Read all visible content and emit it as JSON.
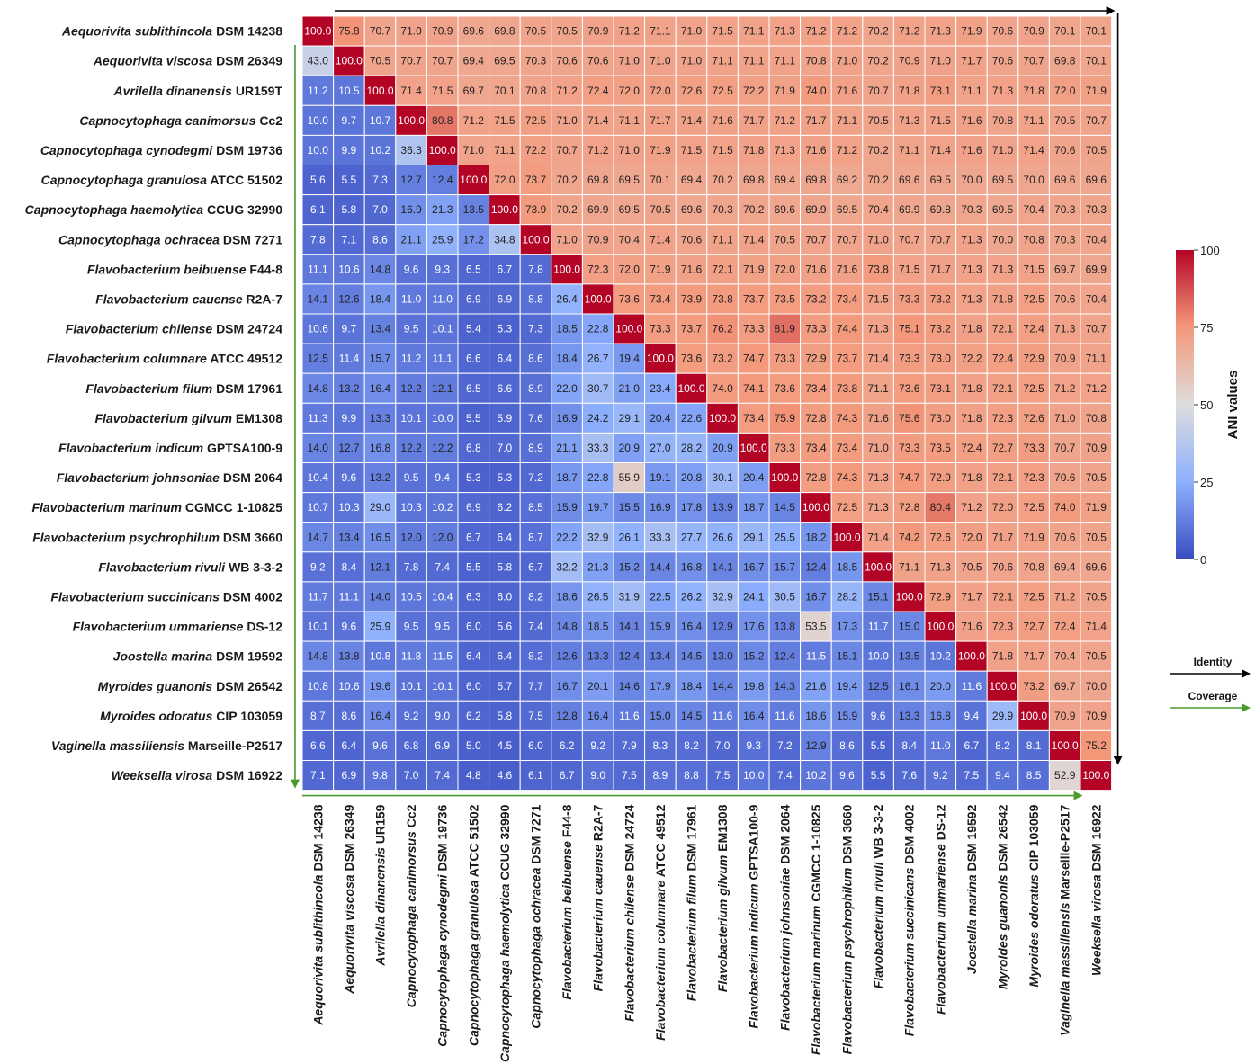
{
  "chart_data": {
    "type": "heatmap",
    "row_labels": [
      {
        "species": "Aequorivita sublithincola",
        "strain": "DSM 14238"
      },
      {
        "species": "Aequorivita viscosa",
        "strain": "DSM 26349"
      },
      {
        "species": "Avrilella dinanensis",
        "strain": "UR159T"
      },
      {
        "species": "Capnocytophaga canimorsus",
        "strain": "Cc2"
      },
      {
        "species": "Capnocytophaga cynodegmi",
        "strain": "DSM 19736"
      },
      {
        "species": "Capnocytophaga granulosa",
        "strain": "ATCC 51502"
      },
      {
        "species": "Capnocytophaga haemolytica",
        "strain": "CCUG 32990"
      },
      {
        "species": "Capnocytophaga ochracea",
        "strain": "DSM 7271"
      },
      {
        "species": "Flavobacterium beibuense",
        "strain": "F44-8"
      },
      {
        "species": "Flavobacterium cauense",
        "strain": "R2A-7"
      },
      {
        "species": "Flavobacterium chilense",
        "strain": "DSM 24724"
      },
      {
        "species": "Flavobacterium columnare",
        "strain": "ATCC 49512"
      },
      {
        "species": "Flavobacterium filum",
        "strain": "DSM 17961"
      },
      {
        "species": "Flavobacterium gilvum",
        "strain": "EM1308"
      },
      {
        "species": "Flavobacterium indicum",
        "strain": "GPTSA100-9"
      },
      {
        "species": "Flavobacterium johnsoniae",
        "strain": "DSM 2064"
      },
      {
        "species": "Flavobacterium marinum",
        "strain": "CGMCC 1-10825"
      },
      {
        "species": "Flavobacterium psychrophilum",
        "strain": "DSM 3660"
      },
      {
        "species": "Flavobacterium rivuli",
        "strain": "WB 3-3-2"
      },
      {
        "species": "Flavobacterium succinicans",
        "strain": "DSM 4002"
      },
      {
        "species": "Flavobacterium ummariense",
        "strain": "DS-12"
      },
      {
        "species": "Joostella marina",
        "strain": "DSM 19592"
      },
      {
        "species": "Myroides guanonis",
        "strain": "DSM 26542"
      },
      {
        "species": "Myroides odoratus",
        "strain": "CIP 103059"
      },
      {
        "species": "Vaginella massiliensis",
        "strain": "Marseille-P2517"
      },
      {
        "species": "Weeksella virosa",
        "strain": "DSM 16922"
      }
    ],
    "col_labels": [
      {
        "species": "Aequorivita sublithincola",
        "strain": "DSM 14238"
      },
      {
        "species": "Aequorivita viscosa",
        "strain": "DSM 26349"
      },
      {
        "species": "Avrilella dinanensis",
        "strain": "UR159"
      },
      {
        "species": "Capnocytophaga canimorsus",
        "strain": "Cc2"
      },
      {
        "species": "Capnocytophaga cynodegmi",
        "strain": "DSM 19736"
      },
      {
        "species": "Capnocytophaga granulosa",
        "strain": "ATCC 51502"
      },
      {
        "species": "Capnocytophaga haemolytica",
        "strain": "CCUG 32990"
      },
      {
        "species": "Capnocytophaga ochracea",
        "strain": "DSM 7271"
      },
      {
        "species": "Flavobacterium beibuense",
        "strain": "F44-8"
      },
      {
        "species": "Flavobacterium cauense",
        "strain": "R2A-7"
      },
      {
        "species": "Flavobacterium chilense",
        "strain": "DSM 24724"
      },
      {
        "species": "Flavobacterium columnare",
        "strain": "ATCC 49512"
      },
      {
        "species": "Flavobacterium filum",
        "strain": "DSM 17961"
      },
      {
        "species": "Flavobacterium gilvum",
        "strain": "EM1308"
      },
      {
        "species": "Flavobacterium indicum",
        "strain": "GPTSA100-9"
      },
      {
        "species": "Flavobacterium johnsoniae",
        "strain": "DSM 2064"
      },
      {
        "species": "Flavobacterium marinum",
        "strain": "CGMCC 1-10825"
      },
      {
        "species": "Flavobacterium psychrophilum",
        "strain": "DSM 3660"
      },
      {
        "species": "Flavobacterium rivuli",
        "strain": "WB 3-3-2"
      },
      {
        "species": "Flavobacterium succinicans",
        "strain": "DSM 4002"
      },
      {
        "species": "Flavobacterium ummariense",
        "strain": "DS-12"
      },
      {
        "species": "Joostella marina",
        "strain": "DSM 19592"
      },
      {
        "species": "Myroides guanonis",
        "strain": "DSM 26542"
      },
      {
        "species": "Myroides odoratus",
        "strain": "CIP 103059"
      },
      {
        "species": "Vaginella massiliensis",
        "strain": "Marseille-P2517"
      },
      {
        "species": "Weeksella virosa",
        "strain": "DSM 16922"
      }
    ],
    "values": [
      [
        "100.0",
        "75.8",
        "70.7",
        "71.0",
        "70.9",
        "69.6",
        "69.8",
        "70.5",
        "70.5",
        "70.9",
        "71.2",
        "71.1",
        "71.0",
        "71.5",
        "71.1",
        "71.3",
        "71.2",
        "71.2",
        "70.2",
        "71.2",
        "71.3",
        "71.9",
        "70.6",
        "70.9",
        "70.1",
        "70.1"
      ],
      [
        "43.0",
        "100.0",
        "70.5",
        "70.7",
        "70.7",
        "69.4",
        "69.5",
        "70.3",
        "70.6",
        "70.6",
        "71.0",
        "71.0",
        "71.0",
        "71.1",
        "71.1",
        "71.1",
        "70.8",
        "71.0",
        "70.2",
        "70.9",
        "71.0",
        "71.7",
        "70.6",
        "70.7",
        "69.8",
        "70.1"
      ],
      [
        "11.2",
        "10.5",
        "100.0",
        "71.4",
        "71.5",
        "69.7",
        "70.1",
        "70.8",
        "71.2",
        "72.4",
        "72.0",
        "72.0",
        "72.6",
        "72.5",
        "72.2",
        "71.9",
        "74.0",
        "71.6",
        "70.7",
        "71.8",
        "73.1",
        "71.1",
        "71.3",
        "71.8",
        "72.0",
        "71.9"
      ],
      [
        "10.0",
        "9.7",
        "10.7",
        "100.0",
        "80.8",
        "71.2",
        "71.5",
        "72.5",
        "71.0",
        "71.4",
        "71.1",
        "71.7",
        "71.4",
        "71.6",
        "71.7",
        "71.2",
        "71.7",
        "71.1",
        "70.5",
        "71.3",
        "71.5",
        "71.6",
        "70.8",
        "71.1",
        "70.5",
        "70.7"
      ],
      [
        "10.0",
        "9.9",
        "10.2",
        "36.3",
        "100.0",
        "71.0",
        "71.1",
        "72.2",
        "70.7",
        "71.2",
        "71.0",
        "71.9",
        "71.5",
        "71.5",
        "71.8",
        "71.3",
        "71.6",
        "71.2",
        "70.2",
        "71.1",
        "71.4",
        "71.6",
        "71.0",
        "71.4",
        "70.6",
        "70.5"
      ],
      [
        "5.6",
        "5.5",
        "7.3",
        "12.7",
        "12.4",
        "100.0",
        "72.0",
        "73.7",
        "70.2",
        "69.8",
        "69.5",
        "70.1",
        "69.4",
        "70.2",
        "69.8",
        "69.4",
        "69.8",
        "69.2",
        "70.2",
        "69.6",
        "69.5",
        "70.0",
        "69.5",
        "70.0",
        "69.6",
        "69.6"
      ],
      [
        "6.1",
        "5.8",
        "7.0",
        "16.9",
        "21.3",
        "13.5",
        "100.0",
        "73.9",
        "70.2",
        "69.9",
        "69.5",
        "70.5",
        "69.6",
        "70.3",
        "70.2",
        "69.6",
        "69.9",
        "69.5",
        "70.4",
        "69.9",
        "69.8",
        "70.3",
        "69.5",
        "70.4",
        "70.3",
        "70.3"
      ],
      [
        "7.8",
        "7.1",
        "8.6",
        "21.1",
        "25.9",
        "17.2",
        "34.8",
        "100.0",
        "71.0",
        "70.9",
        "70.4",
        "71.4",
        "70.6",
        "71.1",
        "71.4",
        "70.5",
        "70.7",
        "70.7",
        "71.0",
        "70.7",
        "70.7",
        "71.3",
        "70.0",
        "70.8",
        "70.3",
        "70.4"
      ],
      [
        "11.1",
        "10.6",
        "14.8",
        "9.6",
        "9.3",
        "6.5",
        "6.7",
        "7.8",
        "100.0",
        "72.3",
        "72.0",
        "71.9",
        "71.6",
        "72.1",
        "71.9",
        "72.0",
        "71.6",
        "71.6",
        "73.8",
        "71.5",
        "71.7",
        "71.3",
        "71.3",
        "71.5",
        "69.7",
        "69.9"
      ],
      [
        "14.1",
        "12.6",
        "18.4",
        "11.0",
        "11.0",
        "6.9",
        "6.9",
        "8.8",
        "26.4",
        "100.0",
        "73.6",
        "73.4",
        "73.9",
        "73.8",
        "73.7",
        "73.5",
        "73.2",
        "73.4",
        "71.5",
        "73.3",
        "73.2",
        "71.3",
        "71.8",
        "72.5",
        "70.6",
        "70.4"
      ],
      [
        "10.6",
        "9.7",
        "13.4",
        "9.5",
        "10.1",
        "5.4",
        "5.3",
        "7.3",
        "18.5",
        "22.8",
        "100.0",
        "73.3",
        "73.7",
        "76.2",
        "73.3",
        "81.9",
        "73.3",
        "74.4",
        "71.3",
        "75.1",
        "73.2",
        "71.8",
        "72.1",
        "72.4",
        "71.3",
        "70.7"
      ],
      [
        "12.5",
        "11.4",
        "15.7",
        "11.2",
        "11.1",
        "6.6",
        "6.4",
        "8.6",
        "18.4",
        "26.7",
        "19.4",
        "100.0",
        "73.6",
        "73.2",
        "74.7",
        "73.3",
        "72.9",
        "73.7",
        "71.4",
        "73.3",
        "73.0",
        "72.2",
        "72.4",
        "72.9",
        "70.9",
        "71.1"
      ],
      [
        "14.8",
        "13.2",
        "16.4",
        "12.2",
        "12.1",
        "6.5",
        "6.6",
        "8.9",
        "22.0",
        "30.7",
        "21.0",
        "23.4",
        "100.0",
        "74.0",
        "74.1",
        "73.6",
        "73.4",
        "73.8",
        "71.1",
        "73.6",
        "73.1",
        "71.8",
        "72.1",
        "72.5",
        "71.2",
        "71.2"
      ],
      [
        "11.3",
        "9.9",
        "13.3",
        "10.1",
        "10.0",
        "5.5",
        "5.9",
        "7.6",
        "16.9",
        "24.2",
        "29.1",
        "20.4",
        "22.6",
        "100.0",
        "73.4",
        "75.9",
        "72.8",
        "74.3",
        "71.6",
        "75.6",
        "73.0",
        "71.8",
        "72.3",
        "72.6",
        "71.0",
        "70.8"
      ],
      [
        "14.0",
        "12.7",
        "16.8",
        "12.2",
        "12.2",
        "6.8",
        "7.0",
        "8.9",
        "21.1",
        "33.3",
        "20.9",
        "27.0",
        "28.2",
        "20.9",
        "100.0",
        "73.3",
        "73.4",
        "73.4",
        "71.0",
        "73.3",
        "73.5",
        "72.4",
        "72.7",
        "73.3",
        "70.7",
        "70.9"
      ],
      [
        "10.4",
        "9.6",
        "13.2",
        "9.5",
        "9.4",
        "5.3",
        "5.3",
        "7.2",
        "18.7",
        "22.8",
        "55.9",
        "19.1",
        "20.8",
        "30.1",
        "20.4",
        "100.0",
        "72.8",
        "74.3",
        "71.3",
        "74.7",
        "72.9",
        "71.8",
        "72.1",
        "72.3",
        "70.6",
        "70.5"
      ],
      [
        "10.7",
        "10.3",
        "29.0",
        "10.3",
        "10.2",
        "6.9",
        "6.2",
        "8.5",
        "15.9",
        "19.7",
        "15.5",
        "16.9",
        "17.8",
        "13.9",
        "18.7",
        "14.5",
        "100.0",
        "72.5",
        "71.3",
        "72.8",
        "80.4",
        "71.2",
        "72.0",
        "72.5",
        "74.0",
        "71.9"
      ],
      [
        "14.7",
        "13.4",
        "16.5",
        "12.0",
        "12.0",
        "6.7",
        "6.4",
        "8.7",
        "22.2",
        "32.9",
        "26.1",
        "33.3",
        "27.7",
        "26.6",
        "29.1",
        "25.5",
        "18.2",
        "100.0",
        "71.4",
        "74.2",
        "72.6",
        "72.0",
        "71.7",
        "71.9",
        "70.6",
        "70.5"
      ],
      [
        "9.2",
        "8.4",
        "12.1",
        "7.8",
        "7.4",
        "5.5",
        "5.8",
        "6.7",
        "32.2",
        "21.3",
        "15.2",
        "14.4",
        "16.8",
        "14.1",
        "16.7",
        "15.7",
        "12.4",
        "18.5",
        "100.0",
        "71.1",
        "71.3",
        "70.5",
        "70.6",
        "70.8",
        "69.4",
        "69.6"
      ],
      [
        "11.7",
        "11.1",
        "14.0",
        "10.5",
        "10.4",
        "6.3",
        "6.0",
        "8.2",
        "18.6",
        "26.5",
        "31.9",
        "22.5",
        "26.2",
        "32.9",
        "24.1",
        "30.5",
        "16.7",
        "28.2",
        "15.1",
        "100.0",
        "72.9",
        "71.7",
        "72.1",
        "72.5",
        "71.2",
        "70.5"
      ],
      [
        "10.1",
        "9.6",
        "25.9",
        "9.5",
        "9.5",
        "6.0",
        "5.6",
        "7.4",
        "14.8",
        "18.5",
        "14.1",
        "15.9",
        "16.4",
        "12.9",
        "17.6",
        "13.8",
        "53.5",
        "17.3",
        "11.7",
        "15.0",
        "100.0",
        "71.6",
        "72.3",
        "72.7",
        "72.4",
        "71.4"
      ],
      [
        "14.8",
        "13.8",
        "10.8",
        "11.8",
        "11.5",
        "6.4",
        "6.4",
        "8.2",
        "12.6",
        "13.3",
        "12.4",
        "13.4",
        "14.5",
        "13.0",
        "15.2",
        "12.4",
        "11.5",
        "15.1",
        "10.0",
        "13.5",
        "10.2",
        "100.0",
        "71.8",
        "71.7",
        "70.4",
        "70.5"
      ],
      [
        "10.8",
        "10.6",
        "19.6",
        "10.1",
        "10.1",
        "6.0",
        "5.7",
        "7.7",
        "16.7",
        "20.1",
        "14.6",
        "17.9",
        "18.4",
        "14.4",
        "19.8",
        "14.3",
        "21.6",
        "19.4",
        "12.5",
        "16.1",
        "20.0",
        "11.6",
        "100.0",
        "73.2",
        "69.7",
        "70.0"
      ],
      [
        "8.7",
        "8.6",
        "16.4",
        "9.2",
        "9.0",
        "6.2",
        "5.8",
        "7.5",
        "12.8",
        "16.4",
        "11.6",
        "15.0",
        "14.5",
        "11.6",
        "16.4",
        "11.6",
        "18.6",
        "15.9",
        "9.6",
        "13.3",
        "16.8",
        "9.4",
        "29.9",
        "100.0",
        "70.9",
        "70.9"
      ],
      [
        "6.6",
        "6.4",
        "9.6",
        "6.8",
        "6.9",
        "5.0",
        "4.5",
        "6.0",
        "6.2",
        "9.2",
        "7.9",
        "8.3",
        "8.2",
        "7.0",
        "9.3",
        "7.2",
        "12.9",
        "8.6",
        "5.5",
        "8.4",
        "11.0",
        "6.7",
        "8.2",
        "8.1",
        "100.0",
        "75.2"
      ],
      [
        "7.1",
        "6.9",
        "9.8",
        "7.0",
        "7.4",
        "4.8",
        "4.6",
        "6.1",
        "6.7",
        "9.0",
        "7.5",
        "8.9",
        "8.8",
        "7.5",
        "10.0",
        "7.4",
        "10.2",
        "9.6",
        "5.5",
        "7.6",
        "9.2",
        "7.5",
        "9.4",
        "8.5",
        "52.9",
        "100.0"
      ]
    ],
    "colorbar": {
      "title": "ANI values",
      "range": [
        0,
        100
      ],
      "ticks": [
        "100",
        "75",
        "50",
        "25",
        "0"
      ],
      "colors": {
        "low": "#3a4cc0",
        "mid": "#dddddd",
        "high": "#b40426"
      }
    },
    "legend": {
      "placement": "right",
      "items": [
        {
          "label": "Identity",
          "color": "#000000"
        },
        {
          "label": "Coverage",
          "color": "#4a9a2c"
        }
      ]
    },
    "annotations": {
      "identity_arrow_color": "#000000",
      "coverage_arrow_color": "#4a9a2c"
    }
  }
}
